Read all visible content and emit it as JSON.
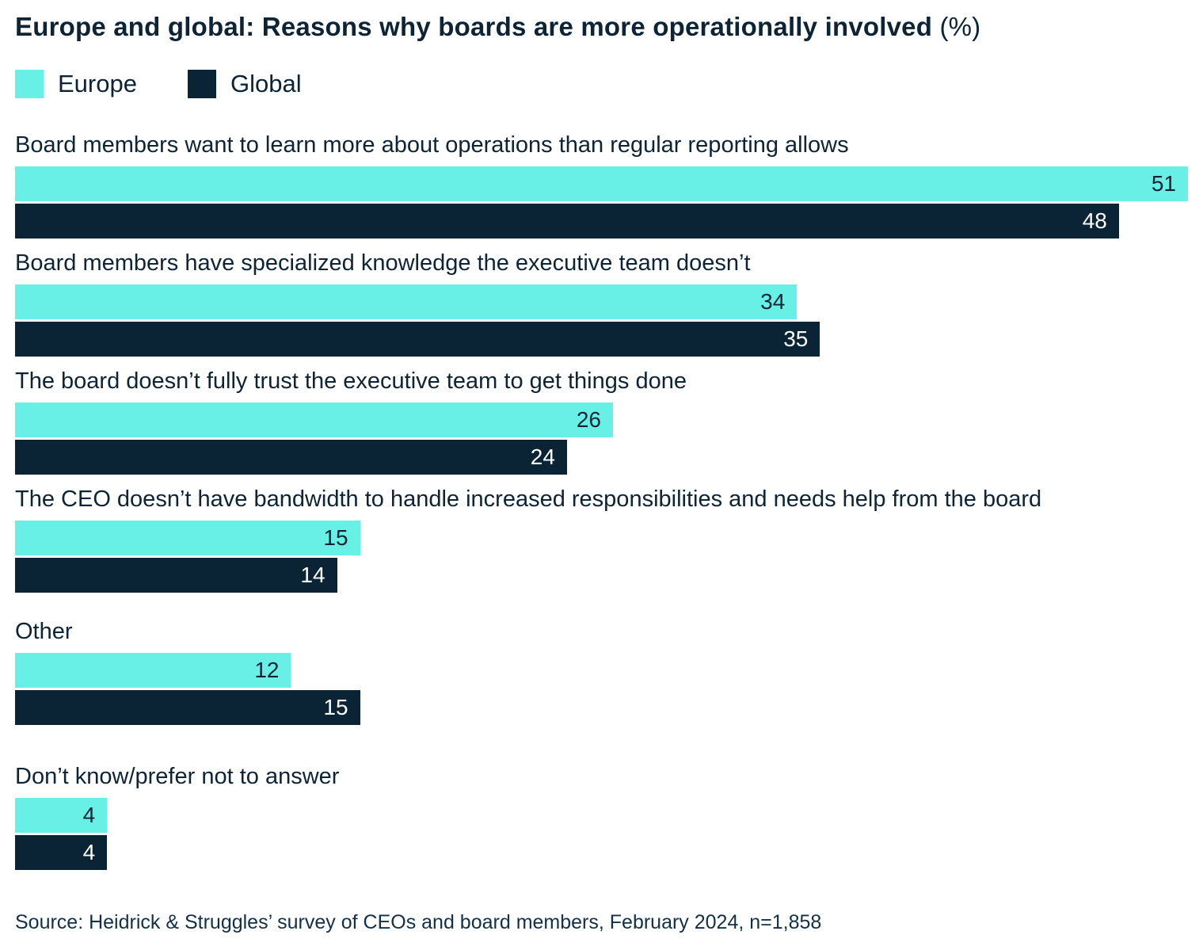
{
  "header": {
    "title": "Europe and global: Reasons why boards are more operationally involved",
    "unit": "(%)"
  },
  "legend": [
    {
      "label": "Europe",
      "color": "#69f0e6"
    },
    {
      "label": "Global",
      "color": "#0a2335"
    }
  ],
  "colors": {
    "europe": "#69f0e6",
    "global": "#0a2335",
    "text": "#0d2437"
  },
  "chart_data": {
    "type": "bar",
    "orientation": "horizontal",
    "title": "Europe and global: Reasons why boards are more operationally involved (%)",
    "categories": [
      "Board members want to learn more about operations than regular reporting allows",
      "Board members have specialized knowledge the executive team doesn’t",
      "The board doesn’t fully trust the executive team to get things done",
      "The CEO doesn’t have bandwidth to handle increased responsibilities and needs help from the board",
      "Other",
      "Don’t know/prefer not to answer"
    ],
    "series": [
      {
        "name": "Europe",
        "values": [
          51,
          34,
          26,
          15,
          12,
          4
        ]
      },
      {
        "name": "Global",
        "values": [
          48,
          35,
          24,
          14,
          15,
          4
        ]
      }
    ],
    "xlim": [
      0,
      51
    ],
    "value_labels": "inside-end",
    "grid": false,
    "legend_position": "top-left",
    "unit": "%"
  },
  "source": "Source: Heidrick & Struggles’ survey of CEOs and board members, February 2024, n=1,858"
}
